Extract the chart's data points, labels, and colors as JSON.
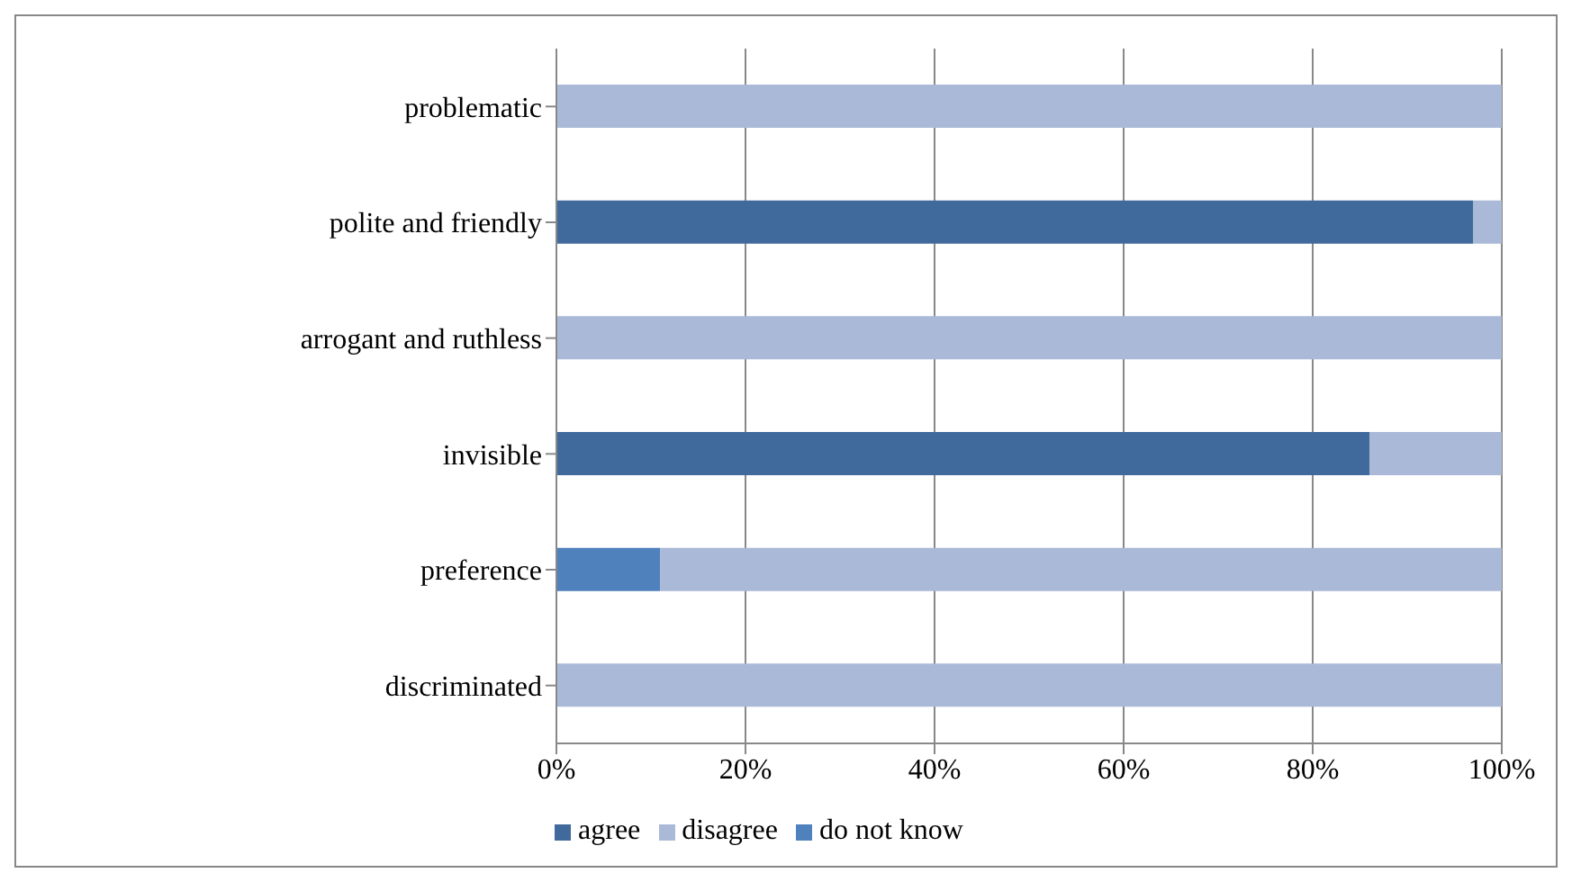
{
  "chart_data": {
    "type": "bar",
    "orientation": "horizontal",
    "stacked": true,
    "categories": [
      "problematic",
      "polite and friendly",
      "arrogant and ruthless",
      "invisible",
      "preference",
      "discriminated"
    ],
    "series": [
      {
        "name": "agree",
        "color": "#416a9c",
        "values": [
          0,
          97,
          0,
          86,
          0,
          0
        ]
      },
      {
        "name": "do not know",
        "color": "#4f81bd",
        "values": [
          0,
          0,
          0,
          0,
          11,
          0
        ]
      },
      {
        "name": "disagree",
        "color": "#aab9d7",
        "values": [
          100,
          3,
          100,
          14,
          89,
          100
        ]
      }
    ],
    "xlim": [
      0,
      100
    ],
    "xticks": [
      {
        "value": 0,
        "label": "0%"
      },
      {
        "value": 20,
        "label": "20%"
      },
      {
        "value": 40,
        "label": "40%"
      },
      {
        "value": 60,
        "label": "60%"
      },
      {
        "value": 80,
        "label": "80%"
      },
      {
        "value": 100,
        "label": "100%"
      }
    ],
    "grid": "x",
    "legend": "bottom"
  }
}
